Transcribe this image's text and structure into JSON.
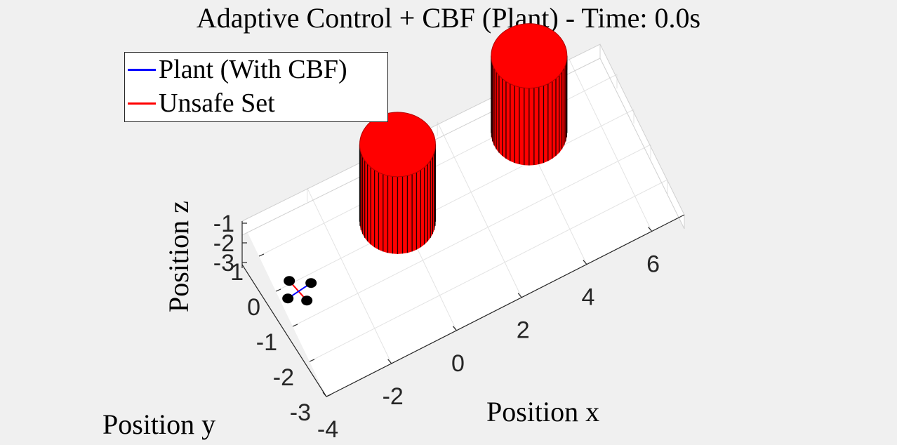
{
  "chart_data": {
    "type": "3d-scene",
    "title": "Adaptive Control + CBF (Plant) - Time: 0.0s",
    "xlabel": "Position x",
    "ylabel": "Position y",
    "zlabel": "Position z",
    "x_ticks": [
      "-4",
      "-2",
      "0",
      "2",
      "4",
      "6"
    ],
    "y_ticks": [
      "-3",
      "-2",
      "-1",
      "0",
      "1"
    ],
    "z_ticks": [
      "-1",
      "-2",
      "-3"
    ],
    "grid": true,
    "legend_location": "top-left",
    "series": [
      {
        "name": "Plant (With CBF)",
        "color": "#0000ff"
      },
      {
        "name": "Unsafe Set",
        "color": "#ff0000"
      }
    ],
    "obstacles": [
      {
        "kind": "cylinder",
        "center_x": 0,
        "center_y": 0.5,
        "color": "#ff0000"
      },
      {
        "kind": "cylinder",
        "center_x": 4.3,
        "center_y": 1.0,
        "color": "#ff0000"
      }
    ],
    "vehicle": {
      "kind": "quadrotor",
      "x": -3.5,
      "y": 0,
      "rotor_color": "#000000"
    }
  }
}
